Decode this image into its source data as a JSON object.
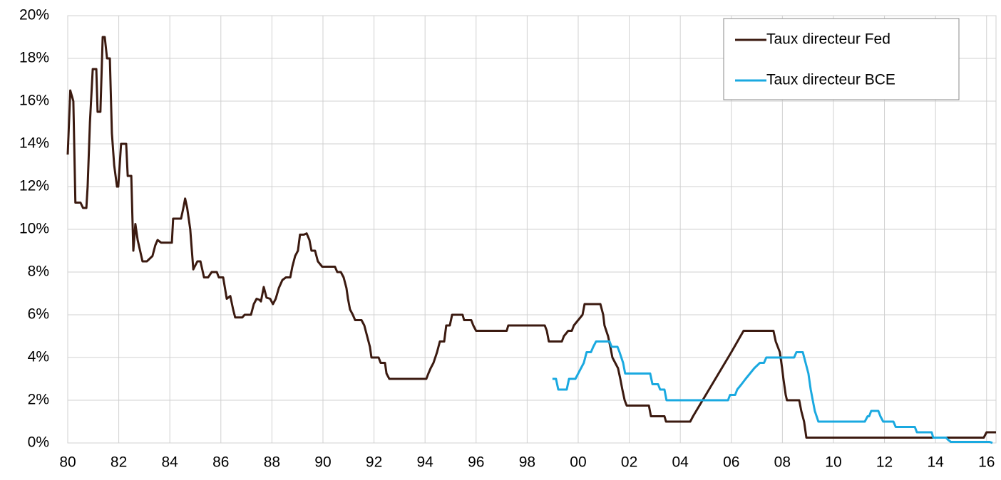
{
  "chart_data": {
    "type": "line",
    "xlim": [
      1980,
      2016.37
    ],
    "ylim": [
      0,
      20
    ],
    "xticks": [
      {
        "value": 1980,
        "label": "80"
      },
      {
        "value": 1982,
        "label": "82"
      },
      {
        "value": 1984,
        "label": "84"
      },
      {
        "value": 1986,
        "label": "86"
      },
      {
        "value": 1988,
        "label": "88"
      },
      {
        "value": 1990,
        "label": "90"
      },
      {
        "value": 1992,
        "label": "92"
      },
      {
        "value": 1994,
        "label": "94"
      },
      {
        "value": 1996,
        "label": "96"
      },
      {
        "value": 1998,
        "label": "98"
      },
      {
        "value": 2000,
        "label": "00"
      },
      {
        "value": 2002,
        "label": "02"
      },
      {
        "value": 2004,
        "label": "04"
      },
      {
        "value": 2006,
        "label": "06"
      },
      {
        "value": 2008,
        "label": "08"
      },
      {
        "value": 2010,
        "label": "10"
      },
      {
        "value": 2012,
        "label": "12"
      },
      {
        "value": 2014,
        "label": "14"
      },
      {
        "value": 2016,
        "label": "16"
      }
    ],
    "yticks": [
      {
        "value": 0,
        "label": "0%"
      },
      {
        "value": 2,
        "label": "2%"
      },
      {
        "value": 4,
        "label": "4%"
      },
      {
        "value": 6,
        "label": "6%"
      },
      {
        "value": 8,
        "label": "8%"
      },
      {
        "value": 10,
        "label": "10%"
      },
      {
        "value": 12,
        "label": "12%"
      },
      {
        "value": 14,
        "label": "14%"
      },
      {
        "value": 16,
        "label": "16%"
      },
      {
        "value": 18,
        "label": "18%"
      },
      {
        "value": 20,
        "label": "20%"
      }
    ],
    "grid": true,
    "legend": "upper right",
    "series": [
      {
        "name": "Taux directeur Fed",
        "color": "#3b1a10",
        "x": [
          1980.0,
          1980.1,
          1980.22,
          1980.3,
          1980.5,
          1980.6,
          1980.73,
          1980.78,
          1980.87,
          1980.98,
          1981.12,
          1981.17,
          1981.28,
          1981.37,
          1981.45,
          1981.54,
          1981.65,
          1981.73,
          1981.82,
          1981.93,
          1981.98,
          1982.09,
          1982.29,
          1982.35,
          1982.49,
          1982.57,
          1982.65,
          1982.74,
          1982.93,
          1983.1,
          1983.21,
          1983.32,
          1983.43,
          1983.52,
          1983.66,
          1984.08,
          1984.13,
          1984.44,
          1984.53,
          1984.6,
          1984.68,
          1984.8,
          1984.92,
          1985.08,
          1985.2,
          1985.34,
          1985.5,
          1985.64,
          1985.84,
          1985.92,
          1986.09,
          1986.23,
          1986.37,
          1986.48,
          1986.56,
          1986.84,
          1986.93,
          1987.18,
          1987.29,
          1987.4,
          1987.51,
          1987.57,
          1987.68,
          1987.79,
          1987.93,
          1988.04,
          1988.15,
          1988.27,
          1988.41,
          1988.55,
          1988.72,
          1988.8,
          1988.91,
          1989.02,
          1989.1,
          1989.25,
          1989.36,
          1989.47,
          1989.55,
          1989.69,
          1989.8,
          1989.97,
          1990.47,
          1990.56,
          1990.7,
          1990.81,
          1990.92,
          1990.98,
          1991.06,
          1991.17,
          1991.26,
          1991.51,
          1991.62,
          1991.73,
          1991.84,
          1991.9,
          1992.18,
          1992.26,
          1992.43,
          1992.49,
          1992.6,
          1994.05,
          1994.13,
          1994.22,
          1994.33,
          1994.47,
          1994.58,
          1994.75,
          1994.83,
          1994.97,
          1995.06,
          1995.47,
          1995.53,
          1995.81,
          1995.89,
          1996.0,
          1997.2,
          1997.26,
          1998.69,
          1998.77,
          1998.85,
          1999.36,
          1999.44,
          1999.61,
          1999.75,
          1999.83,
          2000.0,
          2000.17,
          2000.25,
          2000.87,
          2000.98,
          2001.03,
          2001.17,
          2001.26,
          2001.34,
          2001.45,
          2001.56,
          2001.65,
          2001.73,
          2001.82,
          2001.9,
          2002.77,
          2002.85,
          2003.38,
          2003.44,
          2004.39,
          2004.5,
          2005.0,
          2005.5,
          2006.0,
          2006.48,
          2007.65,
          2007.74,
          2007.82,
          2007.9,
          2007.99,
          2008.04,
          2008.13,
          2008.18,
          2008.66,
          2008.74,
          2008.85,
          2008.94,
          2015.89,
          2016.0,
          2016.37
        ],
        "values": [
          13.5,
          16.5,
          16,
          11.25,
          11.25,
          11,
          11,
          12,
          15,
          17.5,
          17.5,
          15.5,
          15.5,
          19,
          19,
          18,
          18,
          14.5,
          13,
          12,
          12,
          14,
          14,
          12.5,
          12.5,
          9,
          10.25,
          9.5,
          8.5,
          8.5,
          8.625,
          8.75,
          9.25,
          9.5,
          9.375,
          9.375,
          10.5,
          10.5,
          11,
          11.44,
          11,
          10,
          8.125,
          8.5,
          8.5,
          7.75,
          7.75,
          8,
          8,
          7.75,
          7.75,
          6.75,
          6.875,
          6.25,
          5.875,
          5.875,
          6,
          6,
          6.5,
          6.75,
          6.7,
          6.625,
          7.3,
          6.8,
          6.75,
          6.5,
          6.75,
          7.25,
          7.625,
          7.75,
          7.75,
          8.25,
          8.75,
          9,
          9.75,
          9.75,
          9.81,
          9.5,
          9,
          9,
          8.5,
          8.25,
          8.25,
          8,
          8,
          7.75,
          7.25,
          6.75,
          6.25,
          6,
          5.75,
          5.75,
          5.5,
          5,
          4.5,
          4,
          4,
          3.75,
          3.75,
          3.25,
          3,
          3,
          3.25,
          3.5,
          3.75,
          4.25,
          4.75,
          4.75,
          5.5,
          5.5,
          6,
          6,
          5.75,
          5.75,
          5.5,
          5.25,
          5.25,
          5.5,
          5.5,
          5.25,
          4.75,
          4.75,
          5,
          5.25,
          5.25,
          5.5,
          5.75,
          6,
          6.5,
          6.5,
          6,
          5.5,
          5,
          4.5,
          4,
          3.75,
          3.5,
          3,
          2.5,
          2,
          1.75,
          1.75,
          1.25,
          1.25,
          1,
          1,
          1.25,
          2.25,
          3.25,
          4.25,
          5.25,
          5.25,
          4.75,
          4.5,
          4.25,
          3.5,
          3,
          2.25,
          2,
          2,
          1.5,
          1,
          0.25,
          0.25,
          0.5,
          0.5
        ]
      },
      {
        "name": "Taux directeur BCE",
        "color": "#1aa9e0",
        "x": [
          1998.99,
          1999.13,
          1999.22,
          1999.55,
          1999.64,
          1999.89,
          2000.0,
          2000.11,
          2000.22,
          2000.33,
          2000.5,
          2000.59,
          2000.7,
          2001.23,
          2001.31,
          2001.54,
          2001.62,
          2001.76,
          2001.84,
          2002.82,
          2002.91,
          2003.13,
          2003.21,
          2003.38,
          2003.46,
          2005.87,
          2005.95,
          2006.15,
          2006.23,
          2006.4,
          2006.56,
          2006.73,
          2006.9,
          2007.12,
          2007.28,
          2007.37,
          2008.46,
          2008.55,
          2008.8,
          2008.91,
          2009.02,
          2009.11,
          2009.19,
          2009.27,
          2009.41,
          2011.23,
          2011.34,
          2011.4,
          2011.48,
          2011.76,
          2011.84,
          2011.95,
          2012.35,
          2012.44,
          2013.19,
          2013.27,
          2013.85,
          2013.91,
          2014.41,
          2014.49,
          2014.6,
          2016.12,
          2016.23
        ],
        "values": [
          3,
          3,
          2.5,
          2.5,
          3,
          3,
          3.25,
          3.5,
          3.75,
          4.25,
          4.25,
          4.5,
          4.75,
          4.75,
          4.5,
          4.5,
          4.25,
          3.75,
          3.25,
          3.25,
          2.75,
          2.75,
          2.5,
          2.5,
          2,
          2,
          2.25,
          2.25,
          2.5,
          2.75,
          3,
          3.25,
          3.5,
          3.75,
          3.75,
          4,
          4,
          4.25,
          4.25,
          3.75,
          3.25,
          2.5,
          2,
          1.5,
          1,
          1,
          1.25,
          1.25,
          1.5,
          1.5,
          1.25,
          1,
          1,
          0.75,
          0.75,
          0.5,
          0.5,
          0.25,
          0.25,
          0.15,
          0.05,
          0.05,
          0
        ]
      }
    ]
  }
}
